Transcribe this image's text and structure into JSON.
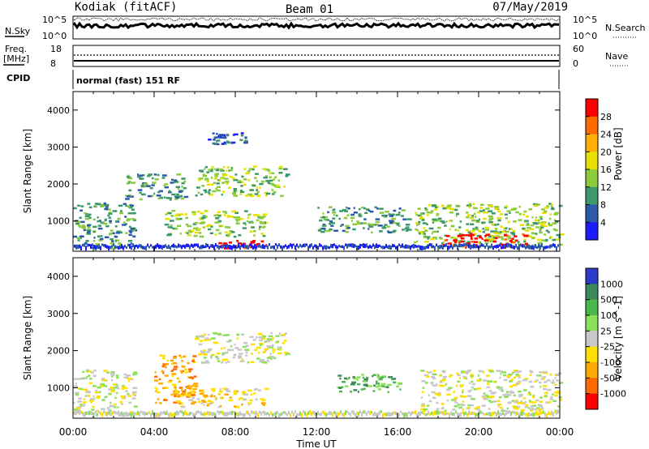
{
  "header": {
    "station": "Kodiak (fitACF)",
    "beam": "Beam 01",
    "date": "07/May/2019"
  },
  "status_panel": {
    "nsky_label": "N.Sky",
    "nsearch_label": "N.Search",
    "nsky_ticks": [
      "10^5",
      "10^0"
    ],
    "nsearch_ticks": [
      "10^5",
      "10^0"
    ],
    "freq_label": "Freq.",
    "freq_unit": "[MHz]",
    "freq_ticks": [
      "18",
      "8"
    ],
    "nave_label": "Nave",
    "nave_ticks": [
      "60",
      "0"
    ],
    "cpid_label": "CPID",
    "cpid_value": "normal (fast) 151 RF"
  },
  "chart_data": [
    {
      "type": "heatmap",
      "name": "power",
      "ylabel": "Slant Range [km]",
      "yticks": [
        "4000",
        "3000",
        "2000",
        "1000"
      ],
      "xticks": [
        "00:00",
        "04:00",
        "08:00",
        "12:00",
        "16:00",
        "20:00",
        "00:00"
      ],
      "xlim": [
        0,
        24
      ],
      "ylim": [
        180,
        4500
      ],
      "colorbar_label": "Power [dB]",
      "colorbar_ticks": [
        "28",
        "24",
        "20",
        "16",
        "12",
        "8",
        "4"
      ],
      "colorbar_colors": [
        "#ff0000",
        "#ff6a00",
        "#ffb000",
        "#e7e000",
        "#8ccc3c",
        "#3c9a6a",
        "#2c5aa8",
        "#1c1cff"
      ],
      "regions": [
        {
          "t0": 0.0,
          "t1": 3.0,
          "r0": 250,
          "r1": 1500,
          "level": 5
        },
        {
          "t0": 2.5,
          "t1": 5.5,
          "r0": 1600,
          "r1": 2300,
          "level": 5
        },
        {
          "t0": 4.5,
          "t1": 9.5,
          "r0": 600,
          "r1": 1300,
          "level": 4
        },
        {
          "t0": 6.0,
          "t1": 10.5,
          "r0": 1700,
          "r1": 2500,
          "level": 4
        },
        {
          "t0": 7.0,
          "t1": 9.5,
          "r0": 280,
          "r1": 500,
          "level": 0
        },
        {
          "t0": 12.0,
          "t1": 16.5,
          "r0": 700,
          "r1": 1400,
          "level": 5
        },
        {
          "t0": 16.8,
          "t1": 24.0,
          "r0": 300,
          "r1": 1500,
          "level": 4
        },
        {
          "t0": 18.0,
          "t1": 22.5,
          "r0": 300,
          "r1": 700,
          "level": 0
        },
        {
          "t0": 6.5,
          "t1": 8.5,
          "r0": 3100,
          "r1": 3400,
          "level": 6
        }
      ]
    },
    {
      "type": "heatmap",
      "name": "velocity",
      "ylabel": "Slant Range [km]",
      "yticks": [
        "4000",
        "3000",
        "2000",
        "1000"
      ],
      "xticks": [
        "00:00",
        "04:00",
        "08:00",
        "12:00",
        "16:00",
        "20:00",
        "00:00"
      ],
      "xlabel": "Time UT",
      "xlim": [
        0,
        24
      ],
      "ylim": [
        180,
        4500
      ],
      "colorbar_label": "Velocity [m s^-1]",
      "colorbar_ticks": [
        "1000",
        "500",
        "100",
        "25",
        "-25",
        "-100",
        "-500",
        "-1000"
      ],
      "colorbar_colors": [
        "#2a3cc8",
        "#3c8a5a",
        "#48b848",
        "#8ce05a",
        "#c8c8c8",
        "#ffe000",
        "#ffaa00",
        "#ff6a00",
        "#ff0000"
      ],
      "regions": [
        {
          "t0": 0.0,
          "t1": 3.0,
          "r0": 250,
          "r1": 1500,
          "level": 4
        },
        {
          "t0": 4.0,
          "t1": 6.0,
          "r0": 600,
          "r1": 1900,
          "level": 6
        },
        {
          "t0": 5.0,
          "t1": 9.5,
          "r0": 500,
          "r1": 1000,
          "level": 5
        },
        {
          "t0": 6.0,
          "t1": 10.5,
          "r0": 1700,
          "r1": 2500,
          "level": 4
        },
        {
          "t0": 13.0,
          "t1": 16.2,
          "r0": 900,
          "r1": 1400,
          "level": 2
        },
        {
          "t0": 17.0,
          "t1": 24.0,
          "r0": 400,
          "r1": 1500,
          "level": 4
        }
      ]
    }
  ]
}
